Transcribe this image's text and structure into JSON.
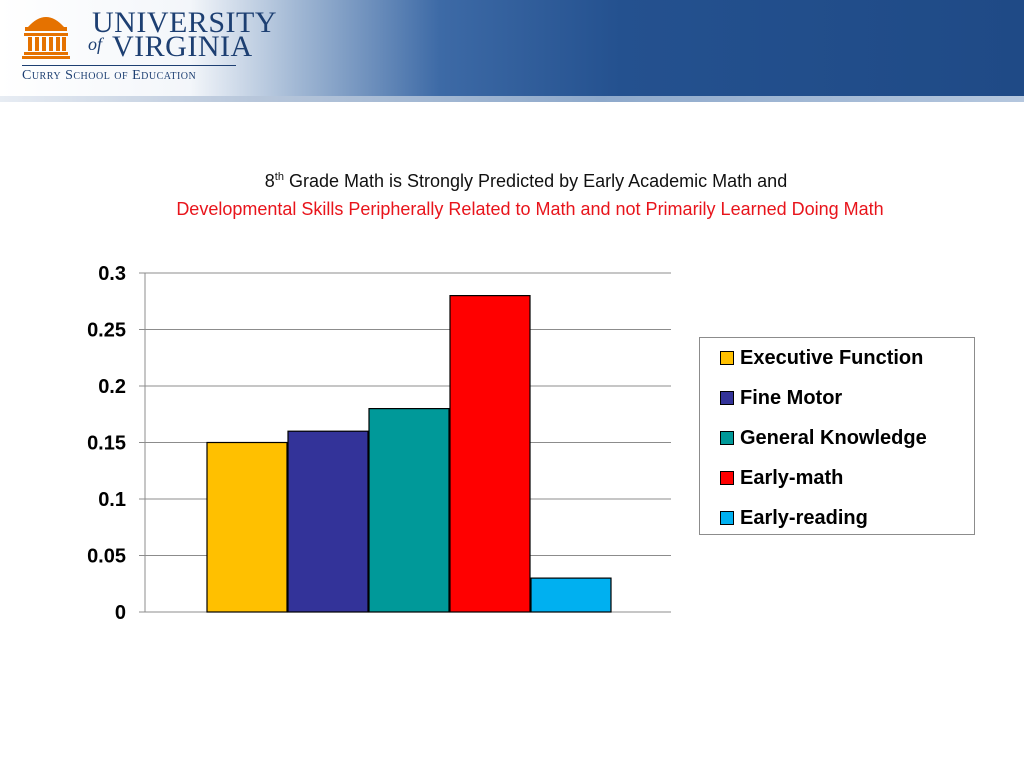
{
  "header": {
    "logo_line1": "UNIVERSITY",
    "logo_of": "of",
    "logo_line2": "VIRGINIA",
    "logo_subtitle": "Curry School of Education"
  },
  "title": {
    "line1_sup_base": "8",
    "line1_sup": "th",
    "line1_rest": " Grade Math is Strongly Predicted by Early Academic Math and",
    "line2": "Developmental Skills Peripherally Related to Math and not Primarily Learned Doing Math"
  },
  "chart_data": {
    "type": "bar",
    "ylim": [
      0,
      0.3
    ],
    "yticks": [
      "0",
      "0.05",
      "0.1",
      "0.15",
      "0.2",
      "0.25",
      "0.3"
    ],
    "ytick_values": [
      0,
      0.05,
      0.1,
      0.15,
      0.2,
      0.25,
      0.3
    ],
    "grid": true,
    "legend_position": "right",
    "series": [
      {
        "name": "Executive Function",
        "value": 0.15,
        "color": "#ffc000"
      },
      {
        "name": "Fine Motor",
        "value": 0.16,
        "color": "#333399"
      },
      {
        "name": "General Knowledge",
        "value": 0.18,
        "color": "#009999"
      },
      {
        "name": "Early-math",
        "value": 0.28,
        "color": "#ff0000"
      },
      {
        "name": "Early-reading",
        "value": 0.03,
        "color": "#00b0f0"
      }
    ]
  }
}
